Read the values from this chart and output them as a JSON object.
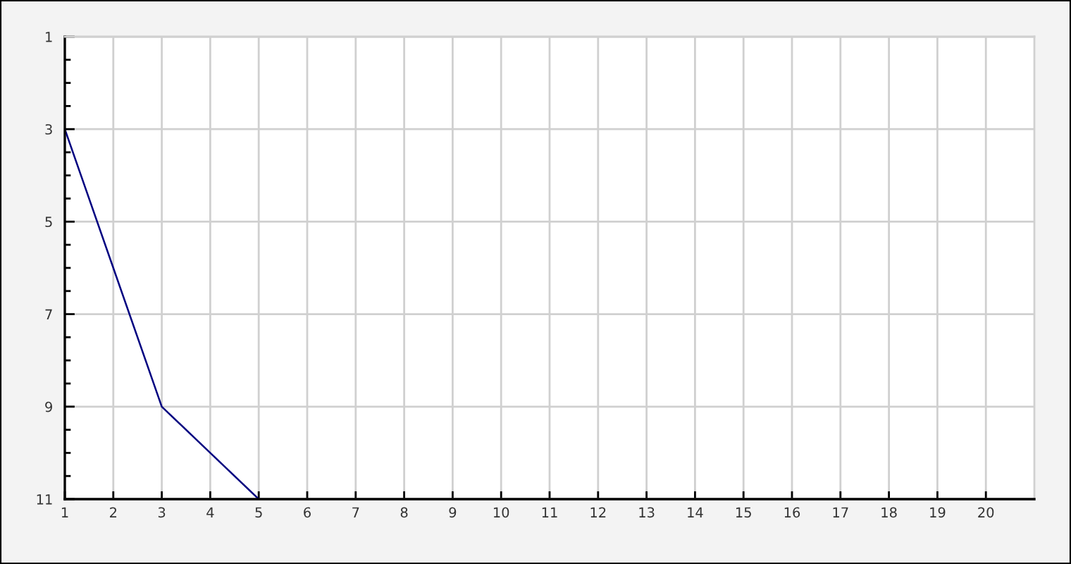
{
  "chart_data": {
    "type": "line",
    "x": [
      1,
      2,
      3,
      4,
      5
    ],
    "series": [
      {
        "color": "#000080",
        "values": [
          3,
          6,
          9,
          10,
          11
        ]
      }
    ],
    "xlim": [
      1,
      21
    ],
    "xticks": [
      1,
      2,
      3,
      4,
      5,
      6,
      7,
      8,
      9,
      10,
      11,
      12,
      13,
      14,
      15,
      16,
      17,
      18,
      19,
      20
    ],
    "ylim": [
      11,
      1
    ],
    "yticks": [
      1,
      {
        "value": 1.5,
        "label": null
      },
      {
        "value": 2,
        "label": null
      },
      {
        "value": 2.5,
        "label": null
      },
      3,
      {
        "value": 3.5,
        "label": null
      },
      {
        "value": 4,
        "label": null
      },
      {
        "value": 4.5,
        "label": null
      },
      5,
      {
        "value": 5.5,
        "label": null
      },
      {
        "value": 6,
        "label": null
      },
      {
        "value": 6.5,
        "label": null
      },
      7,
      {
        "value": 7.5,
        "label": null
      },
      {
        "value": 8,
        "label": null
      },
      {
        "value": 8.5,
        "label": null
      },
      9,
      {
        "value": 9.5,
        "label": null
      },
      {
        "value": 10,
        "label": null
      },
      {
        "value": 10.5,
        "label": null
      },
      11
    ],
    "grid": true,
    "line_style": "solid"
  }
}
